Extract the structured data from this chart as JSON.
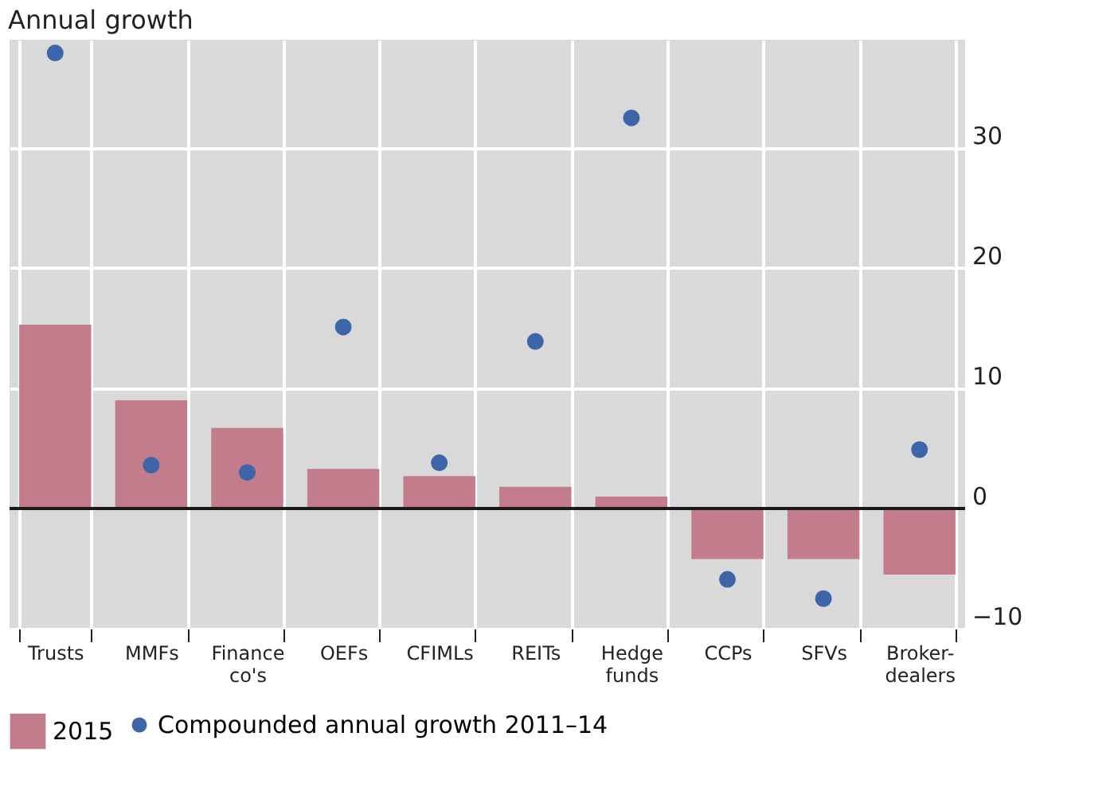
{
  "chart_data": {
    "type": "bar",
    "title": "Annual growth",
    "categories": [
      "Trusts",
      "MMFs",
      "Finance co's",
      "OEFs",
      "CFIMLs",
      "REITs",
      "Hedge funds",
      "CCPs",
      "SFVs",
      "Broker-dealers"
    ],
    "series": [
      {
        "name": "2015",
        "type": "bar",
        "color": "#c27c8b",
        "values": [
          15.3,
          9.0,
          6.7,
          3.3,
          2.7,
          1.8,
          1.0,
          -4.2,
          -4.2,
          -5.5
        ]
      },
      {
        "name": "Compounded annual growth 2011–14",
        "type": "scatter",
        "color": "#3d65a8",
        "values": [
          37.9,
          3.6,
          3.0,
          15.1,
          3.8,
          13.9,
          32.5,
          -5.9,
          -7.5,
          4.9
        ]
      }
    ],
    "ylim": [
      -10,
      39
    ],
    "yticks": [
      -10,
      0,
      10,
      20,
      30
    ],
    "ref_lines": [
      {
        "axis": "y",
        "value": 0,
        "color": "#1a1a1a"
      }
    ],
    "grid": true,
    "legend": "bottom",
    "marker": "circle"
  }
}
